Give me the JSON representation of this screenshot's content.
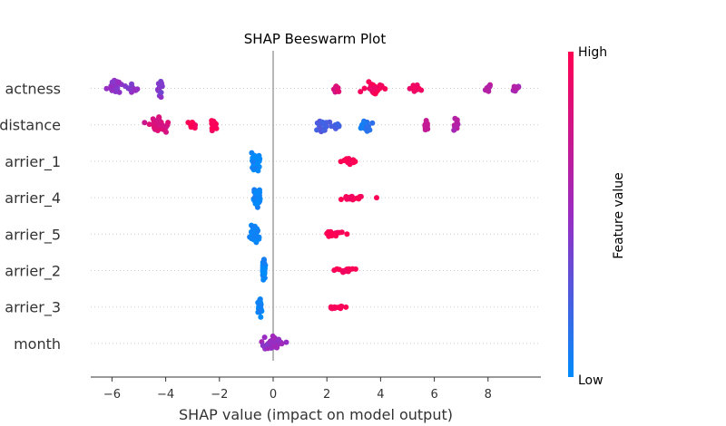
{
  "chart_data": {
    "type": "scatter",
    "subtype": "shap-beeswarm",
    "title": "SHAP Beeswarm Plot",
    "xlabel": "SHAP value (impact on model output)",
    "xlim": [
      -6.7,
      10.0
    ],
    "xticks": [
      -6,
      -4,
      -2,
      0,
      2,
      4,
      6,
      8
    ],
    "xtick_labels": [
      "−6",
      "−4",
      "−2",
      "0",
      "2",
      "4",
      "6",
      "8"
    ],
    "colorbar": {
      "label": "Feature value",
      "high": "High",
      "low": "Low",
      "color_low": "#008bfb",
      "color_mid": "#9a2cc2",
      "color_high": "#ff0052"
    },
    "features": [
      {
        "label": "actness",
        "clusters": [
          {
            "x": -5.95,
            "spread": 0.25,
            "n": 28,
            "feature": 0.45,
            "jitter": 0.38
          },
          {
            "x": -5.25,
            "spread": 0.2,
            "n": 14,
            "feature": 0.45,
            "jitter": 0.2
          },
          {
            "x": -4.2,
            "spread": 0.1,
            "n": 14,
            "feature": 0.42,
            "jitter": 0.38
          },
          {
            "x": 2.35,
            "spread": 0.08,
            "n": 10,
            "feature": 0.82,
            "jitter": 0.26
          },
          {
            "x": 3.8,
            "spread": 0.3,
            "n": 30,
            "feature": 0.95,
            "jitter": 0.3
          },
          {
            "x": 5.3,
            "spread": 0.15,
            "n": 16,
            "feature": 0.92,
            "jitter": 0.28
          },
          {
            "x": 8.0,
            "spread": 0.12,
            "n": 10,
            "feature": 0.65,
            "jitter": 0.15
          },
          {
            "x": 9.05,
            "spread": 0.12,
            "n": 12,
            "feature": 0.6,
            "jitter": 0.18
          }
        ]
      },
      {
        "label": "distance",
        "clusters": [
          {
            "x": -4.2,
            "spread": 0.35,
            "n": 38,
            "feature": 0.8,
            "jitter": 0.35
          },
          {
            "x": -3.0,
            "spread": 0.15,
            "n": 12,
            "feature": 0.95,
            "jitter": 0.2
          },
          {
            "x": -2.2,
            "spread": 0.1,
            "n": 12,
            "feature": 0.95,
            "jitter": 0.28
          },
          {
            "x": 1.9,
            "spread": 0.3,
            "n": 18,
            "feature": 0.25,
            "jitter": 0.3
          },
          {
            "x": 2.4,
            "spread": 0.1,
            "n": 8,
            "feature": 0.25,
            "jitter": 0.2
          },
          {
            "x": 3.5,
            "spread": 0.2,
            "n": 18,
            "feature": 0.1,
            "jitter": 0.25
          },
          {
            "x": 5.7,
            "spread": 0.1,
            "n": 10,
            "feature": 0.72,
            "jitter": 0.28
          },
          {
            "x": 6.8,
            "spread": 0.07,
            "n": 12,
            "feature": 0.6,
            "jitter": 0.28
          }
        ]
      },
      {
        "label": "arrier_1",
        "clusters": [
          {
            "x": -0.7,
            "spread": 0.15,
            "n": 40,
            "feature": 0.02,
            "jitter": 0.42
          },
          {
            "x": 2.8,
            "spread": 0.3,
            "n": 20,
            "feature": 0.98,
            "jitter": 0.12
          }
        ]
      },
      {
        "label": "arrier_4",
        "clusters": [
          {
            "x": -0.6,
            "spread": 0.12,
            "n": 40,
            "feature": 0.02,
            "jitter": 0.42
          },
          {
            "x": 2.9,
            "spread": 0.35,
            "n": 18,
            "feature": 0.98,
            "jitter": 0.1
          },
          {
            "x": 3.85,
            "spread": 0.0,
            "n": 1,
            "feature": 0.98,
            "jitter": 0.0
          }
        ]
      },
      {
        "label": "arrier_5",
        "clusters": [
          {
            "x": -0.7,
            "spread": 0.15,
            "n": 40,
            "feature": 0.02,
            "jitter": 0.42
          },
          {
            "x": 2.3,
            "spread": 0.25,
            "n": 16,
            "feature": 0.98,
            "jitter": 0.12
          },
          {
            "x": 2.75,
            "spread": 0.0,
            "n": 1,
            "feature": 0.98,
            "jitter": 0.0
          }
        ]
      },
      {
        "label": "arrier_2",
        "clusters": [
          {
            "x": -0.35,
            "spread": 0.05,
            "n": 36,
            "feature": 0.02,
            "jitter": 0.42
          },
          {
            "x": 2.7,
            "spread": 0.35,
            "n": 18,
            "feature": 0.98,
            "jitter": 0.1
          }
        ]
      },
      {
        "label": "arrier_3",
        "clusters": [
          {
            "x": -0.5,
            "spread": 0.06,
            "n": 34,
            "feature": 0.02,
            "jitter": 0.42
          },
          {
            "x": 2.45,
            "spread": 0.25,
            "n": 14,
            "feature": 0.98,
            "jitter": 0.08
          }
        ]
      },
      {
        "label": "month",
        "clusters": [
          {
            "x": 0.0,
            "spread": 0.35,
            "n": 40,
            "feature": 0.5,
            "jitter": 0.28
          }
        ]
      }
    ]
  }
}
